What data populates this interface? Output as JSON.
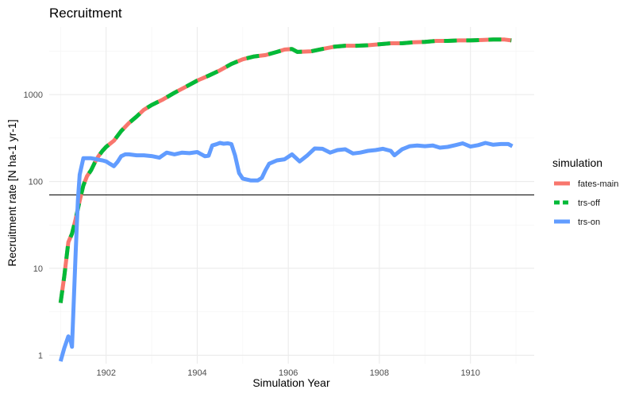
{
  "chart_data": {
    "type": "line",
    "title": "Recruitment",
    "xlabel": "Simulation Year",
    "ylabel": "Recruitment rate [N ha-1 yr-1]",
    "y_scale": "log10",
    "xlim": [
      1900.75,
      1911.4
    ],
    "ylim": [
      0.8,
      6000
    ],
    "x_ticks": [
      1902,
      1904,
      1906,
      1908,
      1910
    ],
    "x_tick_labels": [
      "1902",
      "1904",
      "1906",
      "1908",
      "1910"
    ],
    "y_ticks": [
      1,
      10,
      100,
      1000
    ],
    "y_tick_labels": [
      "1",
      "10",
      "100",
      "1000"
    ],
    "grid": true,
    "hline": 70,
    "hline_color": "#000000",
    "legend": {
      "title": "simulation",
      "position": "right"
    },
    "series": [
      {
        "name": "fates-main",
        "color": "#F8766D",
        "dash": "solid",
        "points": [
          [
            1901.0,
            4
          ],
          [
            1901.08,
            8
          ],
          [
            1901.17,
            20
          ],
          [
            1901.25,
            25
          ],
          [
            1901.33,
            37
          ],
          [
            1901.42,
            60
          ],
          [
            1901.5,
            90
          ],
          [
            1901.58,
            115
          ],
          [
            1901.67,
            135
          ],
          [
            1901.75,
            165
          ],
          [
            1901.83,
            195
          ],
          [
            1901.92,
            225
          ],
          [
            1902.0,
            250
          ],
          [
            1902.17,
            295
          ],
          [
            1902.33,
            380
          ],
          [
            1902.5,
            470
          ],
          [
            1902.67,
            560
          ],
          [
            1902.83,
            670
          ],
          [
            1903.0,
            760
          ],
          [
            1903.25,
            880
          ],
          [
            1903.5,
            1050
          ],
          [
            1903.75,
            1230
          ],
          [
            1904.0,
            1450
          ],
          [
            1904.25,
            1650
          ],
          [
            1904.5,
            1900
          ],
          [
            1904.75,
            2250
          ],
          [
            1905.0,
            2550
          ],
          [
            1905.25,
            2750
          ],
          [
            1905.5,
            2850
          ],
          [
            1905.75,
            3100
          ],
          [
            1905.92,
            3300
          ],
          [
            1906.08,
            3350
          ],
          [
            1906.2,
            3100
          ],
          [
            1906.5,
            3150
          ],
          [
            1906.75,
            3350
          ],
          [
            1907.0,
            3550
          ],
          [
            1907.25,
            3650
          ],
          [
            1907.5,
            3650
          ],
          [
            1907.75,
            3700
          ],
          [
            1908.0,
            3800
          ],
          [
            1908.25,
            3900
          ],
          [
            1908.5,
            3900
          ],
          [
            1908.75,
            4000
          ],
          [
            1909.0,
            4050
          ],
          [
            1909.25,
            4150
          ],
          [
            1909.5,
            4150
          ],
          [
            1909.75,
            4200
          ],
          [
            1910.0,
            4200
          ],
          [
            1910.25,
            4250
          ],
          [
            1910.5,
            4300
          ],
          [
            1910.75,
            4300
          ],
          [
            1910.9,
            4200
          ]
        ]
      },
      {
        "name": "trs-off",
        "color": "#00BA38",
        "dash": "dashed",
        "points": [
          [
            1901.0,
            4
          ],
          [
            1901.08,
            8
          ],
          [
            1901.17,
            20
          ],
          [
            1901.25,
            25
          ],
          [
            1901.33,
            37
          ],
          [
            1901.42,
            60
          ],
          [
            1901.5,
            90
          ],
          [
            1901.58,
            115
          ],
          [
            1901.67,
            135
          ],
          [
            1901.75,
            165
          ],
          [
            1901.83,
            195
          ],
          [
            1901.92,
            225
          ],
          [
            1902.0,
            250
          ],
          [
            1902.17,
            295
          ],
          [
            1902.33,
            380
          ],
          [
            1902.5,
            470
          ],
          [
            1902.67,
            560
          ],
          [
            1902.83,
            670
          ],
          [
            1903.0,
            760
          ],
          [
            1903.25,
            880
          ],
          [
            1903.5,
            1050
          ],
          [
            1903.75,
            1230
          ],
          [
            1904.0,
            1450
          ],
          [
            1904.25,
            1650
          ],
          [
            1904.5,
            1900
          ],
          [
            1904.75,
            2250
          ],
          [
            1905.0,
            2550
          ],
          [
            1905.25,
            2750
          ],
          [
            1905.5,
            2850
          ],
          [
            1905.75,
            3100
          ],
          [
            1905.92,
            3300
          ],
          [
            1906.08,
            3350
          ],
          [
            1906.2,
            3100
          ],
          [
            1906.5,
            3150
          ],
          [
            1906.75,
            3350
          ],
          [
            1907.0,
            3550
          ],
          [
            1907.25,
            3650
          ],
          [
            1907.5,
            3650
          ],
          [
            1907.75,
            3700
          ],
          [
            1908.0,
            3800
          ],
          [
            1908.25,
            3900
          ],
          [
            1908.5,
            3900
          ],
          [
            1908.75,
            4000
          ],
          [
            1909.0,
            4050
          ],
          [
            1909.25,
            4150
          ],
          [
            1909.5,
            4150
          ],
          [
            1909.75,
            4200
          ],
          [
            1910.0,
            4200
          ],
          [
            1910.25,
            4250
          ],
          [
            1910.5,
            4300
          ],
          [
            1910.75,
            4300
          ],
          [
            1910.9,
            4200
          ]
        ]
      },
      {
        "name": "trs-on",
        "color": "#619CFF",
        "dash": "solid",
        "points": [
          [
            1901.0,
            0.85
          ],
          [
            1901.08,
            1.2
          ],
          [
            1901.17,
            1.65
          ],
          [
            1901.21,
            1.55
          ],
          [
            1901.25,
            1.25
          ],
          [
            1901.33,
            15
          ],
          [
            1901.38,
            60
          ],
          [
            1901.42,
            120
          ],
          [
            1901.5,
            185
          ],
          [
            1901.58,
            185
          ],
          [
            1901.67,
            185
          ],
          [
            1901.75,
            182
          ],
          [
            1901.83,
            178
          ],
          [
            1901.92,
            175
          ],
          [
            1902.0,
            170
          ],
          [
            1902.08,
            160
          ],
          [
            1902.17,
            150
          ],
          [
            1902.25,
            168
          ],
          [
            1902.33,
            195
          ],
          [
            1902.42,
            205
          ],
          [
            1902.5,
            205
          ],
          [
            1902.67,
            200
          ],
          [
            1902.83,
            200
          ],
          [
            1903.0,
            196
          ],
          [
            1903.17,
            188
          ],
          [
            1903.33,
            215
          ],
          [
            1903.5,
            205
          ],
          [
            1903.67,
            215
          ],
          [
            1903.83,
            212
          ],
          [
            1904.0,
            218
          ],
          [
            1904.17,
            195
          ],
          [
            1904.25,
            198
          ],
          [
            1904.33,
            260
          ],
          [
            1904.42,
            268
          ],
          [
            1904.5,
            278
          ],
          [
            1904.58,
            272
          ],
          [
            1904.67,
            275
          ],
          [
            1904.75,
            270
          ],
          [
            1904.83,
            200
          ],
          [
            1904.92,
            125
          ],
          [
            1905.0,
            108
          ],
          [
            1905.17,
            103
          ],
          [
            1905.33,
            103
          ],
          [
            1905.42,
            110
          ],
          [
            1905.5,
            135
          ],
          [
            1905.58,
            160
          ],
          [
            1905.75,
            175
          ],
          [
            1905.92,
            180
          ],
          [
            1906.08,
            205
          ],
          [
            1906.25,
            170
          ],
          [
            1906.42,
            200
          ],
          [
            1906.58,
            240
          ],
          [
            1906.75,
            238
          ],
          [
            1906.92,
            215
          ],
          [
            1907.08,
            230
          ],
          [
            1907.25,
            235
          ],
          [
            1907.42,
            210
          ],
          [
            1907.58,
            215
          ],
          [
            1907.75,
            225
          ],
          [
            1907.92,
            230
          ],
          [
            1908.08,
            238
          ],
          [
            1908.25,
            225
          ],
          [
            1908.33,
            200
          ],
          [
            1908.5,
            235
          ],
          [
            1908.67,
            255
          ],
          [
            1908.83,
            260
          ],
          [
            1909.0,
            255
          ],
          [
            1909.17,
            260
          ],
          [
            1909.33,
            245
          ],
          [
            1909.5,
            250
          ],
          [
            1909.67,
            262
          ],
          [
            1909.83,
            275
          ],
          [
            1910.0,
            252
          ],
          [
            1910.17,
            262
          ],
          [
            1910.33,
            278
          ],
          [
            1910.5,
            265
          ],
          [
            1910.67,
            270
          ],
          [
            1910.83,
            270
          ],
          [
            1910.92,
            255
          ]
        ]
      }
    ]
  }
}
